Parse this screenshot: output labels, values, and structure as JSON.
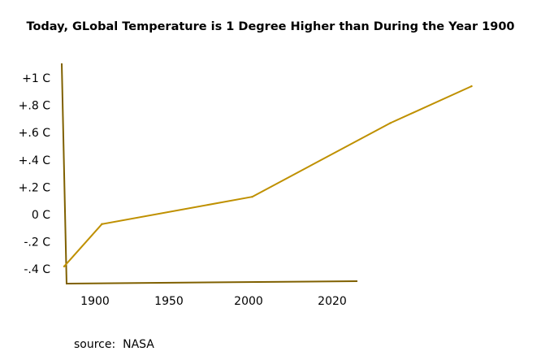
{
  "chart_data": {
    "type": "line",
    "title": "Today, GLobal Temperature is 1 Degree Higher than During the Year 1900",
    "xlabel": "",
    "ylabel": "",
    "x_ticks": [
      {
        "value": 1900,
        "label": "1900"
      },
      {
        "value": 1950,
        "label": "1950"
      },
      {
        "value": 2000,
        "label": "2000"
      },
      {
        "value": 2020,
        "label": "2020"
      }
    ],
    "y_ticks": [
      {
        "value": 1.0,
        "label": "+1 C"
      },
      {
        "value": 0.8,
        "label": "+.8 C"
      },
      {
        "value": 0.6,
        "label": "+.6 C"
      },
      {
        "value": 0.4,
        "label": "+.4 C"
      },
      {
        "value": 0.2,
        "label": "+.2 C"
      },
      {
        "value": 0.0,
        "label": "0 C"
      },
      {
        "value": -0.2,
        "label": "-.2 C"
      },
      {
        "value": -0.4,
        "label": "-.4 C"
      }
    ],
    "series": [
      {
        "x": [
          1880,
          1902,
          1952,
          1998,
          2025
        ],
        "y": [
          -0.38,
          -0.07,
          0.13,
          0.67,
          0.94
        ]
      }
    ],
    "grid": false,
    "legend": "none",
    "colors": {
      "line": "#BF9000",
      "axis": "#7F6000"
    }
  },
  "source": "source:  NASA"
}
